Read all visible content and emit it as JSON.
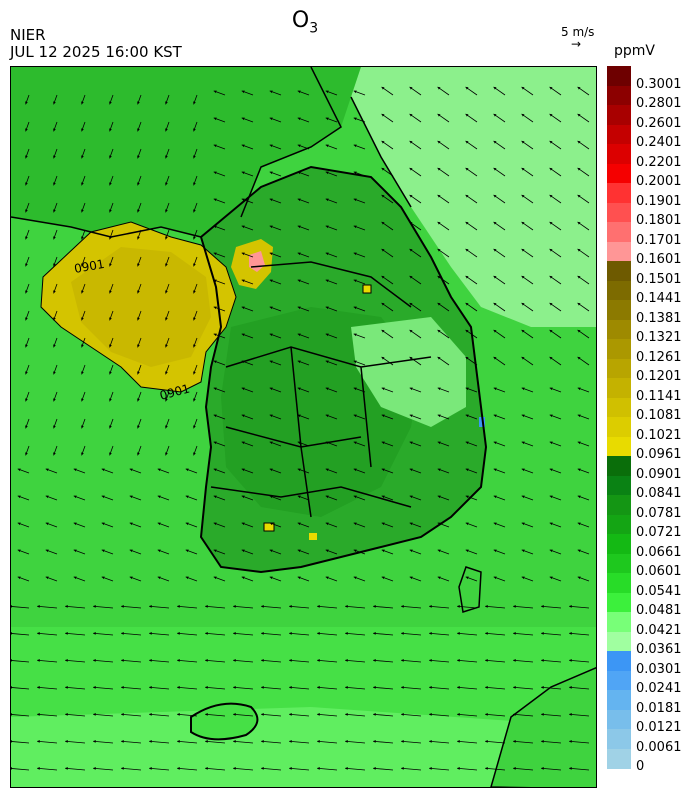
{
  "title": {
    "species": "O",
    "subscript": "3"
  },
  "agency": "NIER",
  "timestamp": "JUL 12 2025 16:00 KST",
  "wind_scale": {
    "label": "5 m/s",
    "glyph": "→"
  },
  "legend": {
    "unit": "ppmV",
    "levels": [
      {
        "label": "0.3001",
        "color": "#6e0000"
      },
      {
        "label": "0.2801",
        "color": "#8c0000"
      },
      {
        "label": "0.2601",
        "color": "#a80000"
      },
      {
        "label": "0.2401",
        "color": "#c40000"
      },
      {
        "label": "0.2201",
        "color": "#dc0000"
      },
      {
        "label": "0.2001",
        "color": "#f50000"
      },
      {
        "label": "0.1901",
        "color": "#ff3232"
      },
      {
        "label": "0.1801",
        "color": "#ff5050"
      },
      {
        "label": "0.1701",
        "color": "#ff7070"
      },
      {
        "label": "0.1601",
        "color": "#ff9696"
      },
      {
        "label": "0.1501",
        "color": "#6e5a00"
      },
      {
        "label": "0.1441",
        "color": "#7d6b00"
      },
      {
        "label": "0.1381",
        "color": "#8c7a00"
      },
      {
        "label": "0.1321",
        "color": "#9e8a00"
      },
      {
        "label": "0.1261",
        "color": "#ab9800"
      },
      {
        "label": "0.1201",
        "color": "#b8a500"
      },
      {
        "label": "0.1141",
        "color": "#c4b200"
      },
      {
        "label": "0.1081",
        "color": "#d0c000"
      },
      {
        "label": "0.1021",
        "color": "#dccd00"
      },
      {
        "label": "0.0961",
        "color": "#e8db00"
      },
      {
        "label": "0.0901",
        "color": "#0a6e0a"
      },
      {
        "label": "0.0841",
        "color": "#0a8214"
      },
      {
        "label": "0.0781",
        "color": "#149614"
      },
      {
        "label": "0.0721",
        "color": "#14a514"
      },
      {
        "label": "0.0661",
        "color": "#14b914"
      },
      {
        "label": "0.0601",
        "color": "#1ec81e"
      },
      {
        "label": "0.0541",
        "color": "#28dc28"
      },
      {
        "label": "0.0481",
        "color": "#3cf03c"
      },
      {
        "label": "0.0421",
        "color": "#78ff78"
      },
      {
        "label": "0.0361",
        "color": "#a0ffa0"
      },
      {
        "label": "0.0301",
        "color": "#3c96f5"
      },
      {
        "label": "0.0241",
        "color": "#50a5f5"
      },
      {
        "label": "0.0181",
        "color": "#64b4f0"
      },
      {
        "label": "0.0121",
        "color": "#78beeb"
      },
      {
        "label": "0.0061",
        "color": "#8cc8e8"
      },
      {
        "label": "0",
        "color": "#a0d2e6"
      }
    ]
  },
  "map": {
    "contour_labels": [
      "0901",
      "0901"
    ],
    "colors": {
      "sea_green": "#3fd33f",
      "land_dark": "#23a823",
      "land_mid": "#2dbb2d",
      "plume_yellow": "#d4c400",
      "plume_core": "#c9b800",
      "light_green": "#8cf08c",
      "hotspot_pink": "#ff9696",
      "coastline": "#000000"
    }
  }
}
